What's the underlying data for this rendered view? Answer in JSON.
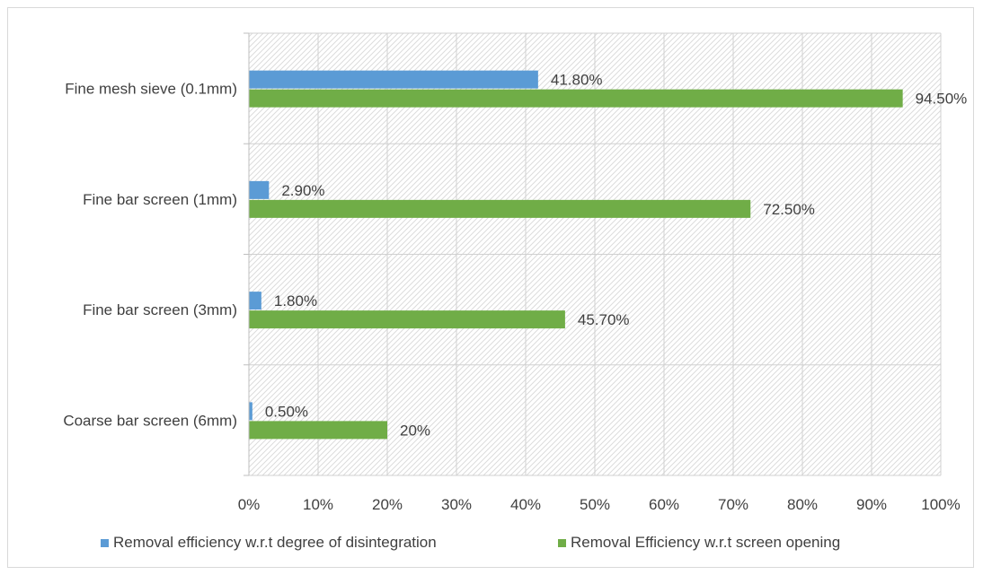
{
  "chart_data": {
    "type": "bar",
    "orientation": "horizontal",
    "categories": [
      "Coarse bar screen (6mm)",
      "Fine bar screen (3mm)",
      "Fine bar screen (1mm)",
      "Fine mesh sieve (0.1mm)"
    ],
    "series": [
      {
        "name": "Removal efficiency w.r.t degree of disintegration",
        "values": [
          0.5,
          1.8,
          2.9,
          41.8
        ],
        "labels": [
          "0.50%",
          "1.80%",
          "2.90%",
          "41.80%"
        ],
        "color": "#5b9bd5"
      },
      {
        "name": "Removal Efficiency w.r.t screen opening",
        "values": [
          20,
          45.7,
          72.5,
          94.5
        ],
        "labels": [
          "20%",
          "45.70%",
          "72.50%",
          "94.50%"
        ],
        "color": "#70ad47"
      }
    ],
    "xlim": [
      0,
      100
    ],
    "xticks": [
      "0%",
      "10%",
      "20%",
      "30%",
      "40%",
      "50%",
      "60%",
      "70%",
      "80%",
      "90%",
      "100%"
    ],
    "title": "",
    "xlabel": "",
    "ylabel": "",
    "grid": true,
    "legend_position": "bottom"
  }
}
